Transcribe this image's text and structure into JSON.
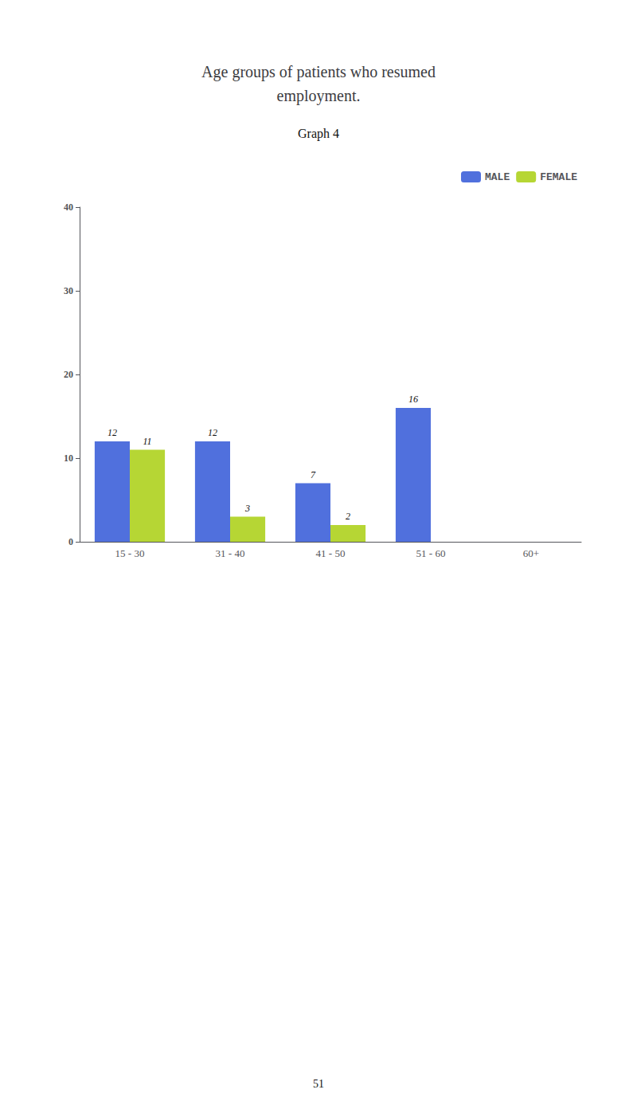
{
  "chart_data": {
    "type": "bar",
    "title": "Age groups of patients who resumed\nemployment.",
    "subtitle": "Graph 4",
    "annotations": [
      "51"
    ],
    "categories": [
      "15 - 30",
      "31 - 40",
      "41 - 50",
      "51 - 60",
      "60+"
    ],
    "series": [
      {
        "name": "MALE",
        "values": [
          12,
          12,
          7,
          16,
          0
        ],
        "value_labels": [
          "12",
          "12",
          "7",
          "16",
          null
        ]
      },
      {
        "name": "FEMALE",
        "values": [
          11,
          3,
          2,
          0,
          0
        ],
        "value_labels": [
          "11",
          "3",
          "2",
          null,
          null
        ]
      }
    ],
    "ylim": [
      0,
      40
    ],
    "yticks": [
      0,
      10,
      20,
      30,
      40
    ],
    "grid": false,
    "legend": "upper right",
    "data_labels": true
  }
}
